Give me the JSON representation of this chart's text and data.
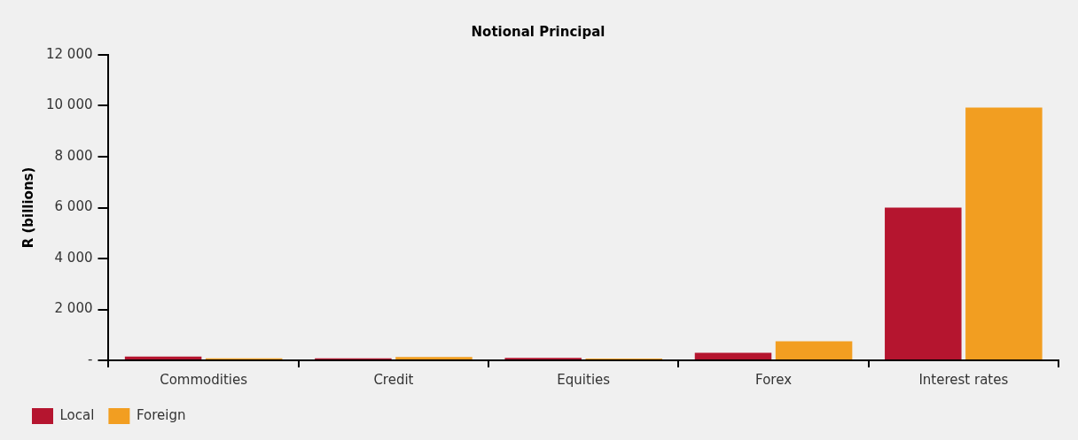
{
  "chart_data": {
    "type": "bar",
    "title": "Notional Principal",
    "ylabel": "R (billions)",
    "categories": [
      "Commodities",
      "Credit",
      "Equities",
      "Forex",
      "Interest rates"
    ],
    "series": [
      {
        "name": "Local",
        "color": "#b5152f",
        "values": [
          150,
          80,
          100,
          300,
          6000
        ]
      },
      {
        "name": "Foreign",
        "color": "#f29e21",
        "values": [
          80,
          130,
          70,
          750,
          9930
        ]
      }
    ],
    "ylim": [
      0,
      12000
    ],
    "yticks": [
      {
        "value": 0,
        "label": "-"
      },
      {
        "value": 2000,
        "label": "2 000"
      },
      {
        "value": 4000,
        "label": "4 000"
      },
      {
        "value": 6000,
        "label": "6 000"
      },
      {
        "value": 8000,
        "label": "8 000"
      },
      {
        "value": 10000,
        "label": "10 000"
      },
      {
        "value": 12000,
        "label": "12 000"
      }
    ],
    "grid": false,
    "legend": "bottom left"
  }
}
